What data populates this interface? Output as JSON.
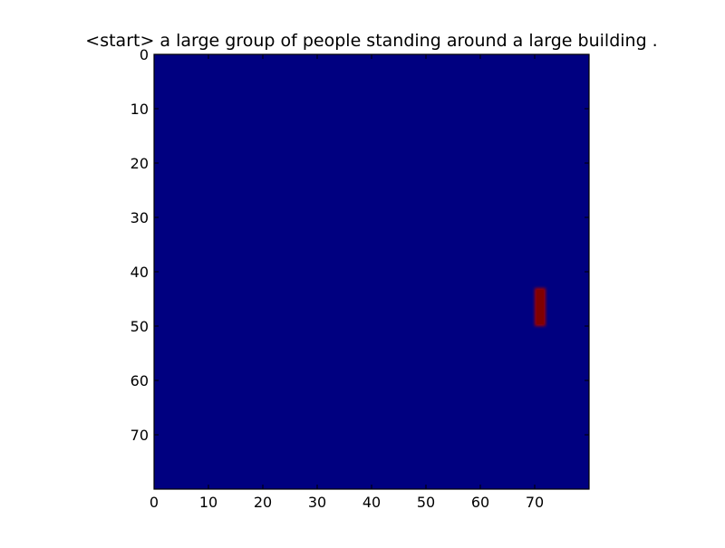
{
  "chart_data": {
    "type": "heatmap",
    "title": "<start> a large group of people standing around a large building .",
    "xlabel": "",
    "ylabel": "",
    "xlim": [
      0,
      80
    ],
    "ylim": [
      0,
      80
    ],
    "x_ticks": [
      "0",
      "10",
      "20",
      "30",
      "40",
      "50",
      "60",
      "70"
    ],
    "y_ticks": [
      "0",
      "10",
      "20",
      "30",
      "40",
      "50",
      "60",
      "70"
    ],
    "y_axis_inverted": true,
    "grid": false,
    "background_value_color": "#000080",
    "hotspots": [
      {
        "x_range": [
          70,
          72
        ],
        "y_range": [
          43,
          50
        ],
        "color": "#800000"
      }
    ]
  }
}
